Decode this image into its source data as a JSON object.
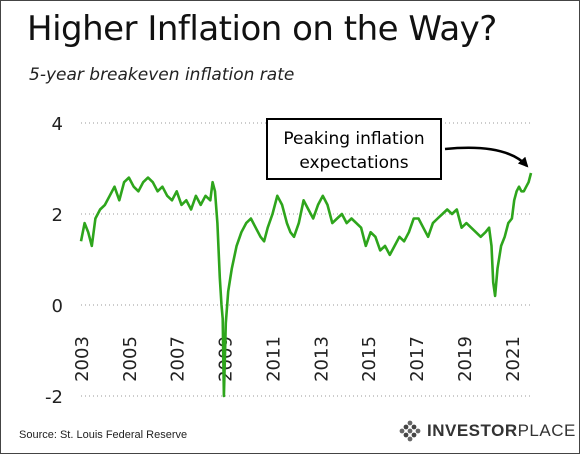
{
  "chart_data": {
    "type": "line",
    "title": "Higher Inflation on the Way?",
    "subtitle": "5-year breakeven inflation rate",
    "xlabel": "",
    "ylabel": "",
    "xlim": [
      2003.0,
      2021.8
    ],
    "ylim": [
      -2,
      4
    ],
    "y_ticks": [
      "4",
      "2",
      "0",
      "-2"
    ],
    "x_ticks": [
      "2003",
      "2005",
      "2007",
      "2009",
      "2011",
      "2013",
      "2015",
      "2017",
      "2019",
      "2021"
    ],
    "grid": "horizontal dotted",
    "annotation": "Peaking inflation expectations",
    "line_color": "#2ea51c",
    "series": [
      {
        "x": [
          2003.0,
          2003.15,
          2003.3,
          2003.45,
          2003.6,
          2003.8,
          2004.0,
          2004.2,
          2004.4,
          2004.6,
          2004.8,
          2005.0,
          2005.2,
          2005.4,
          2005.6,
          2005.8,
          2006.0,
          2006.2,
          2006.4,
          2006.6,
          2006.8,
          2007.0,
          2007.2,
          2007.4,
          2007.6,
          2007.8,
          2008.0,
          2008.2,
          2008.4,
          2008.5,
          2008.6,
          2008.7,
          2008.8,
          2008.87,
          2008.92,
          2008.97,
          2009.05,
          2009.15,
          2009.3,
          2009.5,
          2009.7,
          2009.9,
          2010.1,
          2010.3,
          2010.5,
          2010.65,
          2010.8,
          2011.0,
          2011.2,
          2011.4,
          2011.6,
          2011.75,
          2011.9,
          2012.1,
          2012.3,
          2012.5,
          2012.7,
          2012.9,
          2013.1,
          2013.3,
          2013.5,
          2013.7,
          2013.9,
          2014.1,
          2014.3,
          2014.5,
          2014.7,
          2014.9,
          2015.1,
          2015.3,
          2015.5,
          2015.7,
          2015.9,
          2016.1,
          2016.3,
          2016.5,
          2016.7,
          2016.9,
          2017.1,
          2017.3,
          2017.5,
          2017.7,
          2017.9,
          2018.1,
          2018.3,
          2018.5,
          2018.7,
          2018.9,
          2019.1,
          2019.3,
          2019.5,
          2019.7,
          2019.9,
          2020.05,
          2020.15,
          2020.22,
          2020.3,
          2020.4,
          2020.55,
          2020.7,
          2020.85,
          2021.0,
          2021.1,
          2021.2,
          2021.3,
          2021.4,
          2021.5,
          2021.6,
          2021.7,
          2021.8
        ],
        "y": [
          1.4,
          1.8,
          1.6,
          1.3,
          1.9,
          2.1,
          2.2,
          2.4,
          2.6,
          2.3,
          2.7,
          2.8,
          2.6,
          2.5,
          2.7,
          2.8,
          2.7,
          2.5,
          2.6,
          2.4,
          2.3,
          2.5,
          2.2,
          2.3,
          2.1,
          2.4,
          2.2,
          2.4,
          2.3,
          2.7,
          2.5,
          1.8,
          0.6,
          0.0,
          -0.3,
          -2.0,
          -0.4,
          0.3,
          0.8,
          1.3,
          1.6,
          1.8,
          1.9,
          1.7,
          1.5,
          1.4,
          1.7,
          2.0,
          2.4,
          2.2,
          1.8,
          1.6,
          1.5,
          1.8,
          2.3,
          2.1,
          1.9,
          2.2,
          2.4,
          2.2,
          1.8,
          1.9,
          2.0,
          1.8,
          1.9,
          1.8,
          1.7,
          1.3,
          1.6,
          1.5,
          1.2,
          1.3,
          1.1,
          1.3,
          1.5,
          1.4,
          1.6,
          1.9,
          1.9,
          1.7,
          1.5,
          1.8,
          1.9,
          2.0,
          2.1,
          2.0,
          2.1,
          1.7,
          1.8,
          1.7,
          1.6,
          1.5,
          1.6,
          1.7,
          1.3,
          0.5,
          0.2,
          0.8,
          1.3,
          1.5,
          1.8,
          1.9,
          2.3,
          2.5,
          2.6,
          2.5,
          2.5,
          2.6,
          2.7,
          2.9
        ]
      }
    ]
  },
  "footer": {
    "source": "Source: St. Louis Federal Reserve",
    "brand_bold": "INVESTOR",
    "brand_light": "PLACE"
  }
}
